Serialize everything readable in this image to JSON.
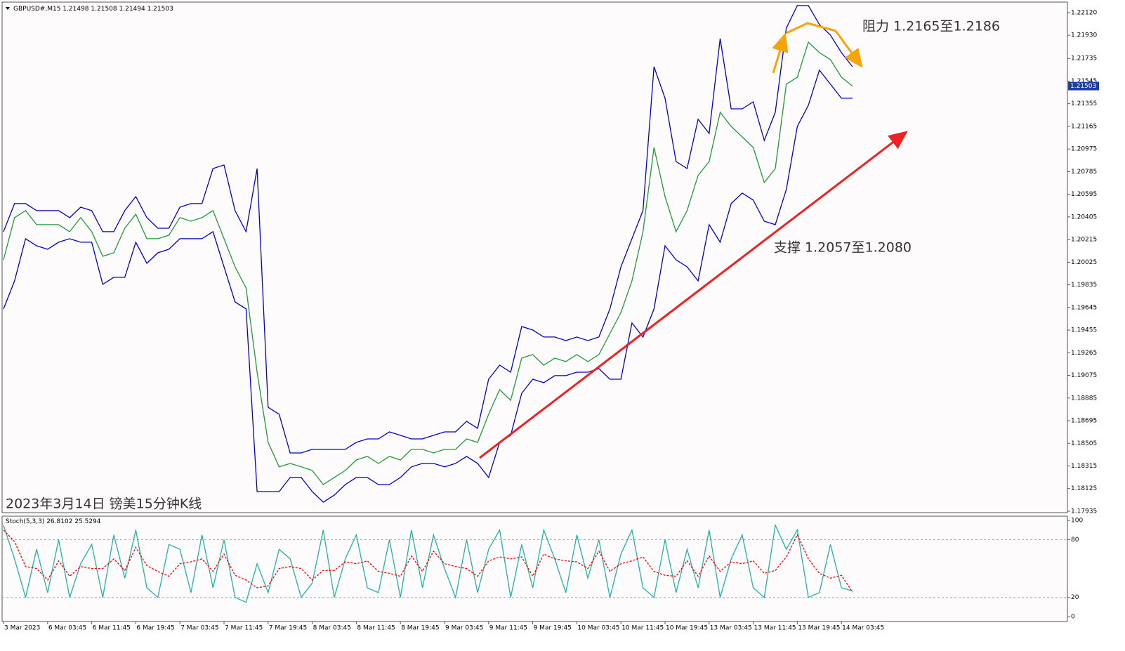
{
  "chart_data": {
    "type": "line",
    "symbol": "GBPUSD#,M15",
    "last_ohlc": [
      1.21498,
      1.21508,
      1.21494,
      1.21503
    ],
    "annotations": [
      "阻力 1.2165至1.2186",
      "支撑 1.2057至1.2080",
      "2023年3月14日 镑美15分钟K线"
    ],
    "xlim": [
      -0.13,
      96.5
    ],
    "xticks": [
      {
        "value": 0,
        "label": "3 Mar 2023"
      },
      {
        "value": 4,
        "label": "6 Mar 03:45"
      },
      {
        "value": 8,
        "label": "6 Mar 11:45"
      },
      {
        "value": 12,
        "label": "6 Mar 19:45"
      },
      {
        "value": 16,
        "label": "7 Mar 03:45"
      },
      {
        "value": 20,
        "label": "7 Mar 11:45"
      },
      {
        "value": 24,
        "label": "7 Mar 19:45"
      },
      {
        "value": 28,
        "label": "8 Mar 03:45"
      },
      {
        "value": 32,
        "label": "8 Mar 11:45"
      },
      {
        "value": 36,
        "label": "8 Mar 19:45"
      },
      {
        "value": 40,
        "label": "9 Mar 03:45"
      },
      {
        "value": 44,
        "label": "9 Mar 11:45"
      },
      {
        "value": 48,
        "label": "9 Mar 19:45"
      },
      {
        "value": 52,
        "label": "10 Mar 03:45"
      },
      {
        "value": 56,
        "label": "10 Mar 11:45"
      },
      {
        "value": 60,
        "label": "10 Mar 19:45"
      },
      {
        "value": 64,
        "label": "13 Mar 03:45"
      },
      {
        "value": 68,
        "label": "13 Mar 11:45"
      },
      {
        "value": 72,
        "label": "13 Mar 19:45"
      },
      {
        "value": 76,
        "label": "14 Mar 03:45"
      }
    ],
    "ylim": [
      1.17923,
      1.22208
    ],
    "yticks": [
      {
        "value": 1.2212,
        "label": "1.22120"
      },
      {
        "value": 1.2193,
        "label": "1.21930"
      },
      1.21735,
      1.21545,
      1.21355,
      1.21165,
      1.20975,
      1.20785,
      1.20595,
      1.20405,
      1.20215,
      1.20025,
      1.19835,
      1.19645,
      1.19455,
      1.19265,
      1.19075,
      1.18885,
      1.18695,
      1.18505,
      1.18315,
      1.18125,
      1.17935
    ],
    "series": [
      {
        "color": "#1f9a3c",
        "values": [
          1.20045,
          1.20399,
          1.20458,
          1.2034,
          1.2034,
          1.2034,
          1.20281,
          1.20399,
          1.20281,
          1.20075,
          1.20104,
          1.2031,
          1.20428,
          1.20222,
          1.20222,
          1.20252,
          1.20399,
          1.20369,
          1.20399,
          1.20458,
          1.20222,
          1.19986,
          1.19809,
          1.19102,
          1.18513,
          1.18307,
          1.18336,
          1.18307,
          1.18277,
          1.18159,
          1.18218,
          1.18277,
          1.18365,
          1.18395,
          1.18336,
          1.18395,
          1.18365,
          1.18454,
          1.18454,
          1.18424,
          1.18454,
          1.18454,
          1.18542,
          1.18513,
          1.18749,
          1.18955,
          1.18866,
          1.1922,
          1.1925,
          1.19161,
          1.1922,
          1.19191,
          1.1925,
          1.19191,
          1.1925,
          1.19426,
          1.19603,
          1.19868,
          1.20281,
          1.20988,
          1.20576,
          1.20281,
          1.20458,
          1.20753,
          1.2087,
          1.21283,
          1.21165,
          1.21077,
          1.20988,
          1.20694,
          1.20811,
          1.21519,
          1.21578,
          1.21872,
          1.21784,
          1.21725,
          1.21578,
          1.21503
        ]
      },
      {
        "color": "#0000cd",
        "values": [
          1.20281,
          1.20517,
          1.20517,
          1.20458,
          1.20458,
          1.20458,
          1.20399,
          1.20487,
          1.20458,
          1.20281,
          1.20281,
          1.20458,
          1.20576,
          1.20399,
          1.2031,
          1.2031,
          1.20487,
          1.20517,
          1.20517,
          1.20811,
          1.20841,
          1.20458,
          1.20281,
          1.20811,
          1.18807,
          1.18749,
          1.18424,
          1.18424,
          1.18454,
          1.18454,
          1.18454,
          1.18454,
          1.18513,
          1.18542,
          1.18542,
          1.18601,
          1.18572,
          1.18542,
          1.18542,
          1.18572,
          1.18601,
          1.18601,
          1.1869,
          1.18631,
          1.19043,
          1.19161,
          1.19102,
          1.19485,
          1.19456,
          1.19397,
          1.19397,
          1.19367,
          1.19397,
          1.19367,
          1.19397,
          1.19633,
          1.19986,
          1.20222,
          1.20458,
          1.21666,
          1.21401,
          1.2087,
          1.20811,
          1.21224,
          1.21106,
          1.21902,
          1.21312,
          1.21312,
          1.21371,
          1.21047,
          1.21283,
          1.2199,
          1.22179,
          1.22179,
          1.2202,
          1.21931,
          1.21784,
          1.21666
        ]
      },
      {
        "color": "#0000cd",
        "values": [
          1.19633,
          1.19868,
          1.20222,
          1.20163,
          1.20134,
          1.20193,
          1.20222,
          1.20193,
          1.20193,
          1.19839,
          1.19898,
          1.19898,
          1.20193,
          1.20016,
          1.20104,
          1.20134,
          1.20222,
          1.20222,
          1.20222,
          1.20281,
          1.19986,
          1.19692,
          1.19633,
          1.181,
          1.181,
          1.181,
          1.18218,
          1.18218,
          1.181,
          1.18011,
          1.1807,
          1.18159,
          1.18218,
          1.18218,
          1.18159,
          1.18159,
          1.18218,
          1.18307,
          1.18336,
          1.18336,
          1.18307,
          1.18336,
          1.18395,
          1.18336,
          1.18218,
          1.18513,
          1.18572,
          1.18925,
          1.19043,
          1.19014,
          1.19073,
          1.19073,
          1.19102,
          1.19102,
          1.19132,
          1.19043,
          1.19043,
          1.19515,
          1.19397,
          1.19633,
          1.20163,
          1.20045,
          1.19986,
          1.19868,
          1.2034,
          1.20193,
          1.20517,
          1.20605,
          1.20546,
          1.20369,
          1.2034,
          1.20635,
          1.21165,
          1.21342,
          1.21637,
          1.21519,
          1.21401,
          1.21401
        ]
      }
    ],
    "indicator": {
      "title": "Stoch(5,3,3)",
      "ylim": [
        -5,
        104.4
      ],
      "yticks": [
        0,
        20,
        80,
        100
      ],
      "levels": [
        20,
        80
      ],
      "series": [
        {
          "color": "#20b2aa",
          "dash": false,
          "values": [
            95,
            60,
            20,
            70,
            25,
            80,
            20,
            55,
            75,
            20,
            85,
            40,
            90,
            30,
            20,
            75,
            70,
            25,
            85,
            30,
            80,
            20,
            15,
            55,
            25,
            70,
            60,
            20,
            35,
            90,
            20,
            60,
            85,
            30,
            25,
            80,
            20,
            90,
            30,
            85,
            50,
            20,
            80,
            25,
            70,
            90,
            20,
            75,
            30,
            90,
            60,
            25,
            85,
            40,
            80,
            20,
            65,
            90,
            30,
            20,
            80,
            25,
            70,
            30,
            90,
            20,
            60,
            85,
            30,
            20,
            95,
            70,
            90,
            20,
            25,
            75,
            30,
            26.8102
          ]
        },
        {
          "color": "#ff0000",
          "dash": true,
          "values": [
            90,
            78,
            52,
            50,
            38,
            58,
            42,
            52,
            50,
            50,
            60,
            48,
            72,
            53,
            47,
            42,
            55,
            57,
            60,
            47,
            65,
            43,
            38,
            30,
            32,
            50,
            52,
            50,
            38,
            48,
            48,
            57,
            55,
            58,
            47,
            45,
            42,
            63,
            47,
            68,
            55,
            52,
            50,
            42,
            58,
            62,
            60,
            62,
            42,
            65,
            60,
            58,
            57,
            50,
            68,
            47,
            55,
            58,
            62,
            47,
            43,
            42,
            58,
            42,
            63,
            47,
            57,
            55,
            58,
            45,
            48,
            62,
            85,
            60,
            45,
            40,
            43,
            25.5294
          ]
        }
      ]
    }
  }
}
